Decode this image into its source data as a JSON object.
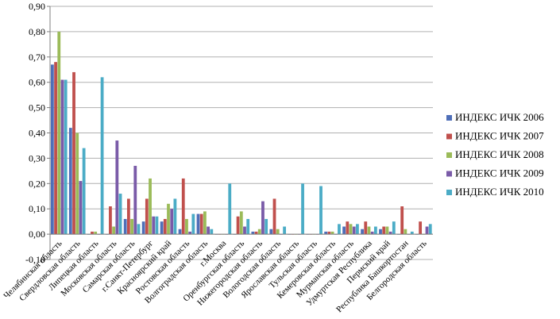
{
  "chart_data": {
    "type": "bar",
    "ylim": [
      -0.1,
      0.9
    ],
    "y_ticks": [
      "-0,10",
      "0,00",
      "0,10",
      "0,20",
      "0,30",
      "0,40",
      "0,50",
      "0,60",
      "0,70",
      "0,80",
      "0,90"
    ],
    "grid": true,
    "legend_position": "right",
    "categories": [
      "Челябинская область",
      "Свердловская область",
      "Липецкая область",
      "Московская область",
      "Самарская область",
      "г.Санкт-Петербург",
      "Красноярский край",
      "Ростовская область",
      "Волгоградская область",
      "г.Москва",
      "Оренбургская область",
      "Нижегородская область",
      "Вологодская область",
      "Ярославская область",
      "Тульская область",
      "Кемеровская область",
      "Мурманская область",
      "Удмуртская Республика",
      "Пермский край",
      "Республика Башкортостан",
      "Белгородская область"
    ],
    "series": [
      {
        "name": "ИНДЕКС ИЧК 2006",
        "color": "#4F6FB8",
        "values": [
          0.67,
          0.42,
          0.0,
          0.0,
          0.06,
          0.05,
          0.05,
          0.02,
          0.08,
          0.0,
          0.0,
          0.01,
          0.02,
          0.0,
          0.0,
          0.01,
          0.03,
          0.02,
          0.02,
          0.0,
          0.0
        ]
      },
      {
        "name": "ИНДЕКС ИЧК 2007",
        "color": "#C0504D",
        "values": [
          0.68,
          0.64,
          0.01,
          0.11,
          0.14,
          0.14,
          0.06,
          0.22,
          0.08,
          0.0,
          0.07,
          0.01,
          0.14,
          0.0,
          0.0,
          0.01,
          0.05,
          0.05,
          0.03,
          0.11,
          0.05
        ]
      },
      {
        "name": "ИНДЕКС ИЧК 2008",
        "color": "#9BBB59",
        "values": [
          0.8,
          0.4,
          0.01,
          0.03,
          0.06,
          0.22,
          0.12,
          0.06,
          0.09,
          0.0,
          0.09,
          0.02,
          0.02,
          0.0,
          0.0,
          0.01,
          0.04,
          0.03,
          0.03,
          0.02,
          0.0
        ]
      },
      {
        "name": "ИНДЕКС ИЧК 2009",
        "color": "#7A5BA8",
        "values": [
          0.61,
          0.21,
          0.0,
          0.37,
          0.27,
          0.07,
          0.1,
          0.01,
          0.03,
          0.0,
          0.03,
          0.13,
          0.0,
          0.0,
          0.0,
          0.0,
          0.03,
          0.01,
          0.01,
          0.0,
          0.03
        ]
      },
      {
        "name": "ИНДЕКС ИЧК 2010",
        "color": "#4BACC6",
        "values": [
          0.61,
          0.34,
          0.62,
          0.16,
          0.04,
          0.07,
          0.14,
          0.08,
          0.02,
          0.2,
          0.06,
          0.06,
          0.03,
          0.2,
          0.19,
          0.04,
          0.04,
          0.03,
          0.05,
          0.01,
          0.04
        ]
      }
    ]
  }
}
